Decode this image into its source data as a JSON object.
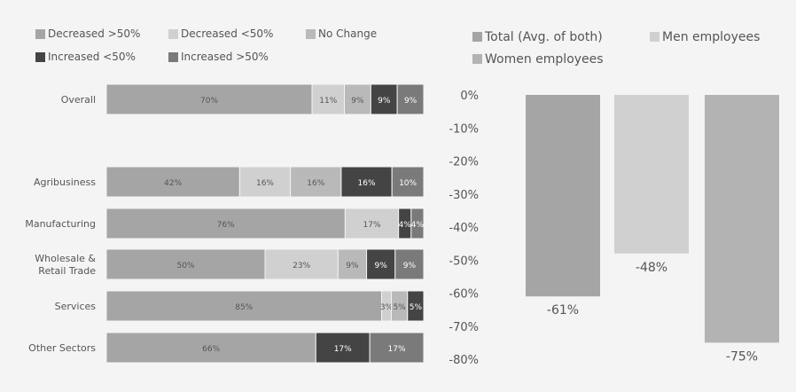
{
  "chart_data": [
    {
      "type": "bar",
      "orientation": "horizontal",
      "stacked": true,
      "unit": "%",
      "categories": [
        "Overall",
        "Agribusiness",
        "Manufacturing",
        "Wholesale & Retail Trade",
        "Services",
        "Other Sectors"
      ],
      "category_lines": [
        [
          "Overall"
        ],
        [
          "Agribusiness"
        ],
        [
          "Manufacturing"
        ],
        [
          "Wholesale &",
          "Retail Trade"
        ],
        [
          "Services"
        ],
        [
          "Other Sectors"
        ]
      ],
      "series": [
        {
          "name": "Decreased >50%",
          "color": "#a5a5a5",
          "label_color": "#555555",
          "values": [
            70,
            42,
            76,
            50,
            85,
            66
          ],
          "labels": [
            "70%",
            "42%",
            "76%",
            "50%",
            "85%",
            "66%"
          ]
        },
        {
          "name": "Decreased <50%",
          "color": "#d0d0d0",
          "label_color": "#555555",
          "values": [
            11,
            16,
            17,
            23,
            3,
            0
          ],
          "labels": [
            "11%",
            "16%",
            "17%",
            "23%",
            "3%",
            ""
          ]
        },
        {
          "name": "No Change",
          "color": "#b9b9b9",
          "label_color": "#555555",
          "values": [
            9,
            16,
            0,
            9,
            5,
            0
          ],
          "labels": [
            "9%",
            "16%",
            "",
            "9%",
            "5%",
            ""
          ]
        },
        {
          "name": "Increased <50%",
          "color": "#444444",
          "label_color": "#ffffff",
          "values": [
            9,
            16,
            4,
            9,
            5,
            17
          ],
          "labels": [
            "9%",
            "16%",
            "4%",
            "9%",
            "5%",
            "17%"
          ]
        },
        {
          "name": "Increased >50%",
          "color": "#7a7a7a",
          "label_color": "#ffffff",
          "values": [
            9,
            10,
            4,
            9,
            0,
            17
          ],
          "labels": [
            "9%",
            "10%",
            "4%",
            "9%",
            "",
            "17%"
          ]
        }
      ],
      "legend_position": "top"
    },
    {
      "type": "bar",
      "orientation": "vertical",
      "ylim": [
        -80,
        0
      ],
      "yticks": [
        0,
        -10,
        -20,
        -30,
        -40,
        -50,
        -60,
        -70,
        -80
      ],
      "ytick_labels": [
        "0%",
        "-10%",
        "-20%",
        "-30%",
        "-40%",
        "-50%",
        "-60%",
        "-70%",
        "-80%"
      ],
      "series": [
        {
          "name": "Total (Avg. of both)",
          "color": "#a5a5a5",
          "value": -61,
          "label": "-61%"
        },
        {
          "name": "Men employees",
          "color": "#d0d0d0",
          "value": -48,
          "label": "-48%"
        },
        {
          "name": "Women employees",
          "color": "#b3b3b3",
          "value": -75,
          "label": "-75%"
        }
      ],
      "legend_position": "top"
    }
  ]
}
